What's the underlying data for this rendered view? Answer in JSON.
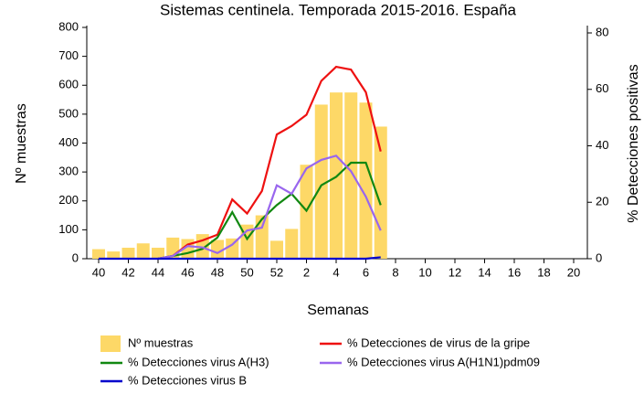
{
  "chart_data": {
    "type": "bar",
    "title": "Sistemas centinela. Temporada 2015-2016. España",
    "x_label": "Semanas",
    "y_label": "Nº muestras",
    "y2_label": "% Detecciones positivas",
    "categories": [
      40,
      null,
      42,
      null,
      44,
      null,
      46,
      null,
      48,
      null,
      50,
      null,
      52,
      null,
      2,
      null,
      4,
      null,
      6,
      null,
      8,
      null,
      10,
      null,
      12,
      null,
      14,
      null,
      16,
      null,
      18,
      null,
      20
    ],
    "series": [
      {
        "name": "Nº muestras",
        "type": "bar",
        "color": "#fdd867",
        "values": [
          33,
          25,
          38,
          53,
          38,
          73,
          68,
          85,
          65,
          70,
          118,
          150,
          62,
          103,
          325,
          533,
          575,
          575,
          540,
          457,
          null,
          null,
          null,
          null,
          null,
          null,
          null,
          null,
          null,
          null,
          null,
          null,
          null
        ]
      },
      {
        "name": "% Detecciones de virus de la gripe",
        "type": "line",
        "axis": "y2",
        "color": "#ee1111",
        "values": [
          null,
          null,
          null,
          null,
          0,
          1,
          5,
          6.5,
          8.5,
          21,
          16,
          24,
          44,
          47,
          51,
          63,
          68,
          67,
          59,
          38,
          null,
          null,
          null,
          null,
          null,
          null,
          null,
          null,
          null,
          null,
          null,
          null,
          null
        ]
      },
      {
        "name": "% Detecciones virus A(H3)",
        "type": "line",
        "axis": "y2",
        "color": "#118811",
        "values": [
          null,
          null,
          null,
          null,
          0,
          1,
          2,
          3.5,
          7.5,
          16.5,
          7,
          14,
          19,
          23,
          17,
          26,
          29,
          34,
          34,
          19,
          null,
          null,
          null,
          null,
          null,
          null,
          null,
          null,
          null,
          null,
          null,
          null,
          null
        ]
      },
      {
        "name": "% Detecciones virus A(H1N1)pdm09",
        "type": "line",
        "axis": "y2",
        "color": "#9966ee",
        "values": [
          null,
          null,
          null,
          null,
          0,
          1,
          4.5,
          4,
          2,
          5,
          10,
          11,
          26,
          23,
          32,
          35,
          36.5,
          31,
          22,
          10,
          null,
          null,
          null,
          null,
          null,
          null,
          null,
          null,
          null,
          null,
          null,
          null,
          null
        ]
      },
      {
        "name": "% Detecciones virus B",
        "type": "line",
        "axis": "y2",
        "color": "#0000cc",
        "values": [
          0,
          0,
          0,
          0,
          0,
          0,
          0,
          0,
          0,
          0,
          0,
          0,
          0,
          0,
          0,
          0,
          0,
          0,
          0,
          0.5,
          null,
          null,
          null,
          null,
          null,
          null,
          null,
          null,
          null,
          null,
          null,
          null,
          null
        ]
      }
    ],
    "ylim": [
      0,
      800
    ],
    "yticks": [
      0,
      100,
      200,
      300,
      400,
      500,
      600,
      700,
      800
    ],
    "y2lim": [
      0,
      80
    ],
    "y2ticks": [
      0,
      20,
      40,
      60,
      80
    ]
  }
}
